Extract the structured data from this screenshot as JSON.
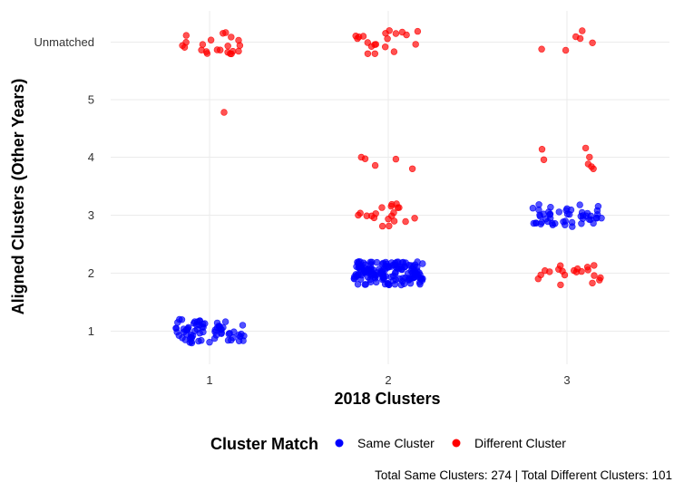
{
  "chart_data": {
    "type": "scatter",
    "jitter": true,
    "xlabel": "2018 Clusters",
    "ylabel": "Aligned Clusters (Other Years)",
    "x_categories": [
      "1",
      "2",
      "3"
    ],
    "y_categories": [
      "1",
      "2",
      "3",
      "4",
      "5",
      "Unmatched"
    ],
    "grid": true,
    "legend": {
      "title": "Cluster Match",
      "placement": "bottom",
      "entries": [
        {
          "label": "Same Cluster",
          "color": "#0000FF"
        },
        {
          "label": "Different Cluster",
          "color": "#FF0000"
        }
      ]
    },
    "caption": "Total Same Clusters: 274 | Total Different Clusters: 101",
    "groups": [
      {
        "x": "1",
        "y": "1",
        "match": "Same Cluster",
        "count": 70
      },
      {
        "x": "1",
        "y": "5",
        "match": "Different Cluster",
        "count": 1
      },
      {
        "x": "1",
        "y": "Unmatched",
        "match": "Different Cluster",
        "count": 22
      },
      {
        "x": "2",
        "y": "2",
        "match": "Same Cluster",
        "count": 154
      },
      {
        "x": "2",
        "y": "3",
        "match": "Different Cluster",
        "count": 20
      },
      {
        "x": "2",
        "y": "4",
        "match": "Different Cluster",
        "count": 5
      },
      {
        "x": "2",
        "y": "Unmatched",
        "match": "Different Cluster",
        "count": 20
      },
      {
        "x": "3",
        "y": "2",
        "match": "Different Cluster",
        "count": 20
      },
      {
        "x": "3",
        "y": "3",
        "match": "Same Cluster",
        "count": 50
      },
      {
        "x": "3",
        "y": "4",
        "match": "Different Cluster",
        "count": 7
      },
      {
        "x": "3",
        "y": "Unmatched",
        "match": "Different Cluster",
        "count": 6
      }
    ]
  }
}
